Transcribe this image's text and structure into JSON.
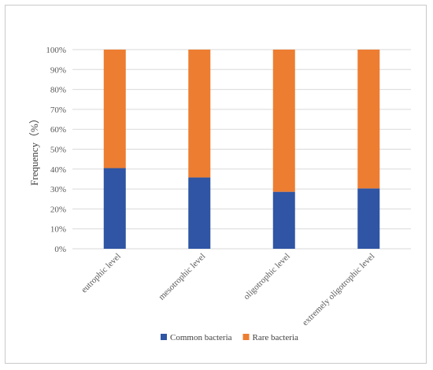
{
  "chart_data": {
    "type": "bar",
    "stacked": true,
    "percent": true,
    "categories": [
      "eutrophic level",
      "mesotrophic level",
      "oligotrophic level",
      "extremely oligotrophic level"
    ],
    "series": [
      {
        "name": "Common bacteria",
        "values": [
          40.5,
          35.8,
          28.6,
          30.3
        ],
        "color": "#2f55a4"
      },
      {
        "name": "Rare bacteria",
        "values": [
          59.5,
          64.2,
          71.4,
          69.7
        ],
        "color": "#ed7d31"
      }
    ],
    "title": "",
    "xlabel": "",
    "ylabel": "Frequency（%）",
    "ylim": [
      0,
      100
    ],
    "yticks": [
      "0%",
      "10%",
      "20%",
      "30%",
      "40%",
      "50%",
      "60%",
      "70%",
      "80%",
      "90%",
      "100%"
    ],
    "grid": true,
    "legend_position": "bottom"
  }
}
